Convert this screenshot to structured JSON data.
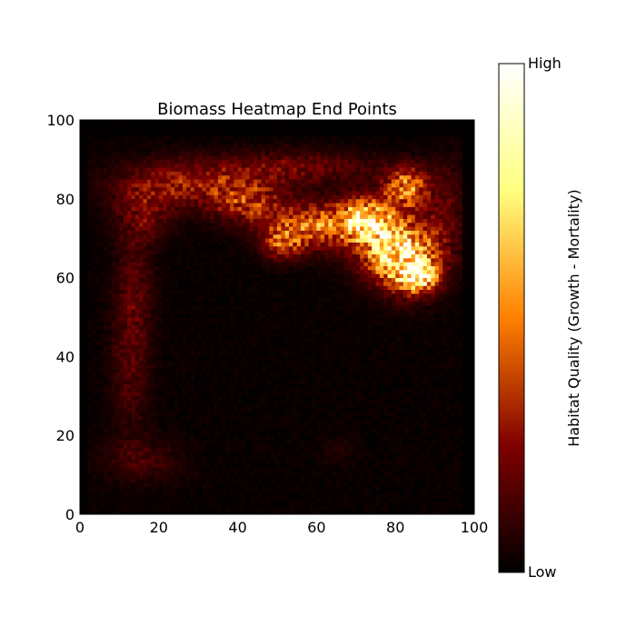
{
  "chart_data": {
    "type": "heatmap",
    "title": "Biomass Heatmap End Points",
    "xlabel": "",
    "ylabel": "",
    "xlim": [
      0,
      100
    ],
    "ylim": [
      0,
      100
    ],
    "x_ticks": [
      0,
      20,
      40,
      60,
      80,
      100
    ],
    "y_ticks": [
      0,
      20,
      40,
      60,
      80,
      100
    ],
    "grid": false,
    "colormap": "afmhot",
    "colorbar": {
      "label": "Habitat Quality (Growth - Mortality)",
      "high_label": "High",
      "low_label": "Low"
    },
    "hotspots": [
      {
        "x": 81,
        "y": 66,
        "sx": 6.5,
        "sy": 6,
        "amp": 0.82
      },
      {
        "x": 86,
        "y": 60,
        "sx": 3.2,
        "sy": 2.5,
        "amp": 0.55
      },
      {
        "x": 72,
        "y": 75,
        "sx": 5,
        "sy": 4,
        "amp": 0.55
      },
      {
        "x": 83,
        "y": 83,
        "sx": 4,
        "sy": 3.5,
        "amp": 0.5
      },
      {
        "x": 60,
        "y": 73,
        "sx": 8,
        "sy": 4,
        "amp": 0.42
      },
      {
        "x": 51,
        "y": 69,
        "sx": 3.5,
        "sy": 3,
        "amp": 0.32
      },
      {
        "x": 42,
        "y": 79,
        "sx": 7,
        "sy": 4,
        "amp": 0.3
      },
      {
        "x": 27,
        "y": 84,
        "sx": 12,
        "sy": 4,
        "amp": 0.26
      },
      {
        "x": 16,
        "y": 76,
        "sx": 5,
        "sy": 5,
        "amp": 0.18
      },
      {
        "x": 14,
        "y": 55,
        "sx": 3.5,
        "sy": 10,
        "amp": 0.16
      },
      {
        "x": 13,
        "y": 35,
        "sx": 3.5,
        "sy": 10,
        "amp": 0.12
      },
      {
        "x": 16,
        "y": 14,
        "sx": 7,
        "sy": 4,
        "amp": 0.11
      },
      {
        "x": 66,
        "y": 17,
        "sx": 3,
        "sy": 2.5,
        "amp": 0.22
      },
      {
        "x": 55,
        "y": 88,
        "sx": 14,
        "sy": 3,
        "amp": 0.18
      },
      {
        "x": 93,
        "y": 78,
        "sx": 3,
        "sy": 8,
        "amp": 0.14
      }
    ],
    "low_zones": [
      {
        "x": 34,
        "y": 42,
        "sx": 13,
        "sy": 25
      },
      {
        "x": 68,
        "y": 33,
        "sx": 12,
        "sy": 23
      },
      {
        "x": 50,
        "y": 28,
        "sx": 10,
        "sy": 20
      }
    ]
  }
}
